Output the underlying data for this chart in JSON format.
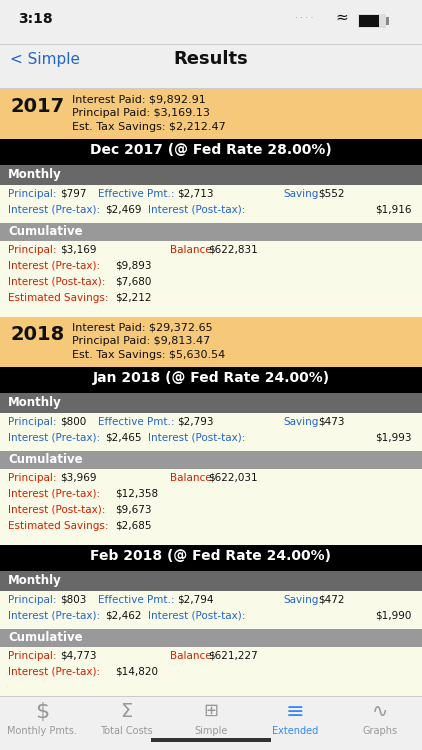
{
  "bg_color": "#efefef",
  "status_time": "3:18",
  "nav_back": "< Simple",
  "nav_title": "Results",
  "year_sections": [
    {
      "year": "2017",
      "line1": "Interest Paid: $9,892.91",
      "line2": "Principal Paid: $3,169.13",
      "line3": "Est. Tax Savings: $2,212.47",
      "bg": "#F5C87A"
    },
    {
      "year": "2018",
      "line1": "Interest Paid: $29,372.65",
      "line2": "Principal Paid: $9,813.47",
      "line3": "Est. Tax Savings: $5,630.54",
      "bg": "#F5C87A"
    }
  ],
  "sections": [
    {
      "header": "Dec 2017 (@ Fed Rate 28.00%)",
      "m_row1": [
        "Principal:",
        "$797",
        "Effective Pmt.:",
        "$2,713",
        "Saving:",
        "$552"
      ],
      "m_row2": [
        "Interest (Pre-tax):",
        "$2,469",
        "Interest (Post-tax):",
        "$1,916"
      ],
      "c_row1": [
        "Principal:",
        "$3,169",
        "Balance:",
        "$622,831"
      ],
      "c_row2": [
        "Interest (Pre-tax):",
        "$9,893"
      ],
      "c_row3": [
        "Interest (Post-tax):",
        "$7,680"
      ],
      "c_row4": [
        "Estimated Savings:",
        "$2,212"
      ]
    },
    {
      "header": "Jan 2018 (@ Fed Rate 24.00%)",
      "m_row1": [
        "Principal:",
        "$800",
        "Effective Pmt.:",
        "$2,793",
        "Saving:",
        "$473"
      ],
      "m_row2": [
        "Interest (Pre-tax):",
        "$2,465",
        "Interest (Post-tax):",
        "$1,993"
      ],
      "c_row1": [
        "Principal:",
        "$3,969",
        "Balance:",
        "$622,031"
      ],
      "c_row2": [
        "Interest (Pre-tax):",
        "$12,358"
      ],
      "c_row3": [
        "Interest (Post-tax):",
        "$9,673"
      ],
      "c_row4": [
        "Estimated Savings:",
        "$2,685"
      ]
    }
  ],
  "partial": {
    "header": "Feb 2018 (@ Fed Rate 24.00%)",
    "m_row1": [
      "Principal:",
      "$803",
      "Effective Pmt.:",
      "$2,794",
      "Saving:",
      "$472"
    ],
    "m_row2": [
      "Interest (Pre-tax):",
      "$2,462",
      "Interest (Post-tax):",
      "$1,990"
    ],
    "c_row1": [
      "Principal:",
      "$4,773",
      "Balance:",
      "$621,227"
    ],
    "c_row2": [
      "Interest (Pre-tax):",
      "$14,820"
    ]
  },
  "tabs": [
    "Monthly Pmts.",
    "Total Costs",
    "Simple",
    "Extended",
    "Graphs"
  ],
  "active_tab": 3,
  "blue": "#2266CC",
  "red": "#CC2200",
  "black": "#111111",
  "white": "#ffffff",
  "header_bg": "#000000",
  "monthly_bar_bg": "#686868",
  "cumul_bar_bg": "#999999",
  "data_bg": "#FAFAE8",
  "tab_bg": "#F0F0F0",
  "active_tab_color": "#3388FF",
  "inactive_tab_color": "#999999"
}
